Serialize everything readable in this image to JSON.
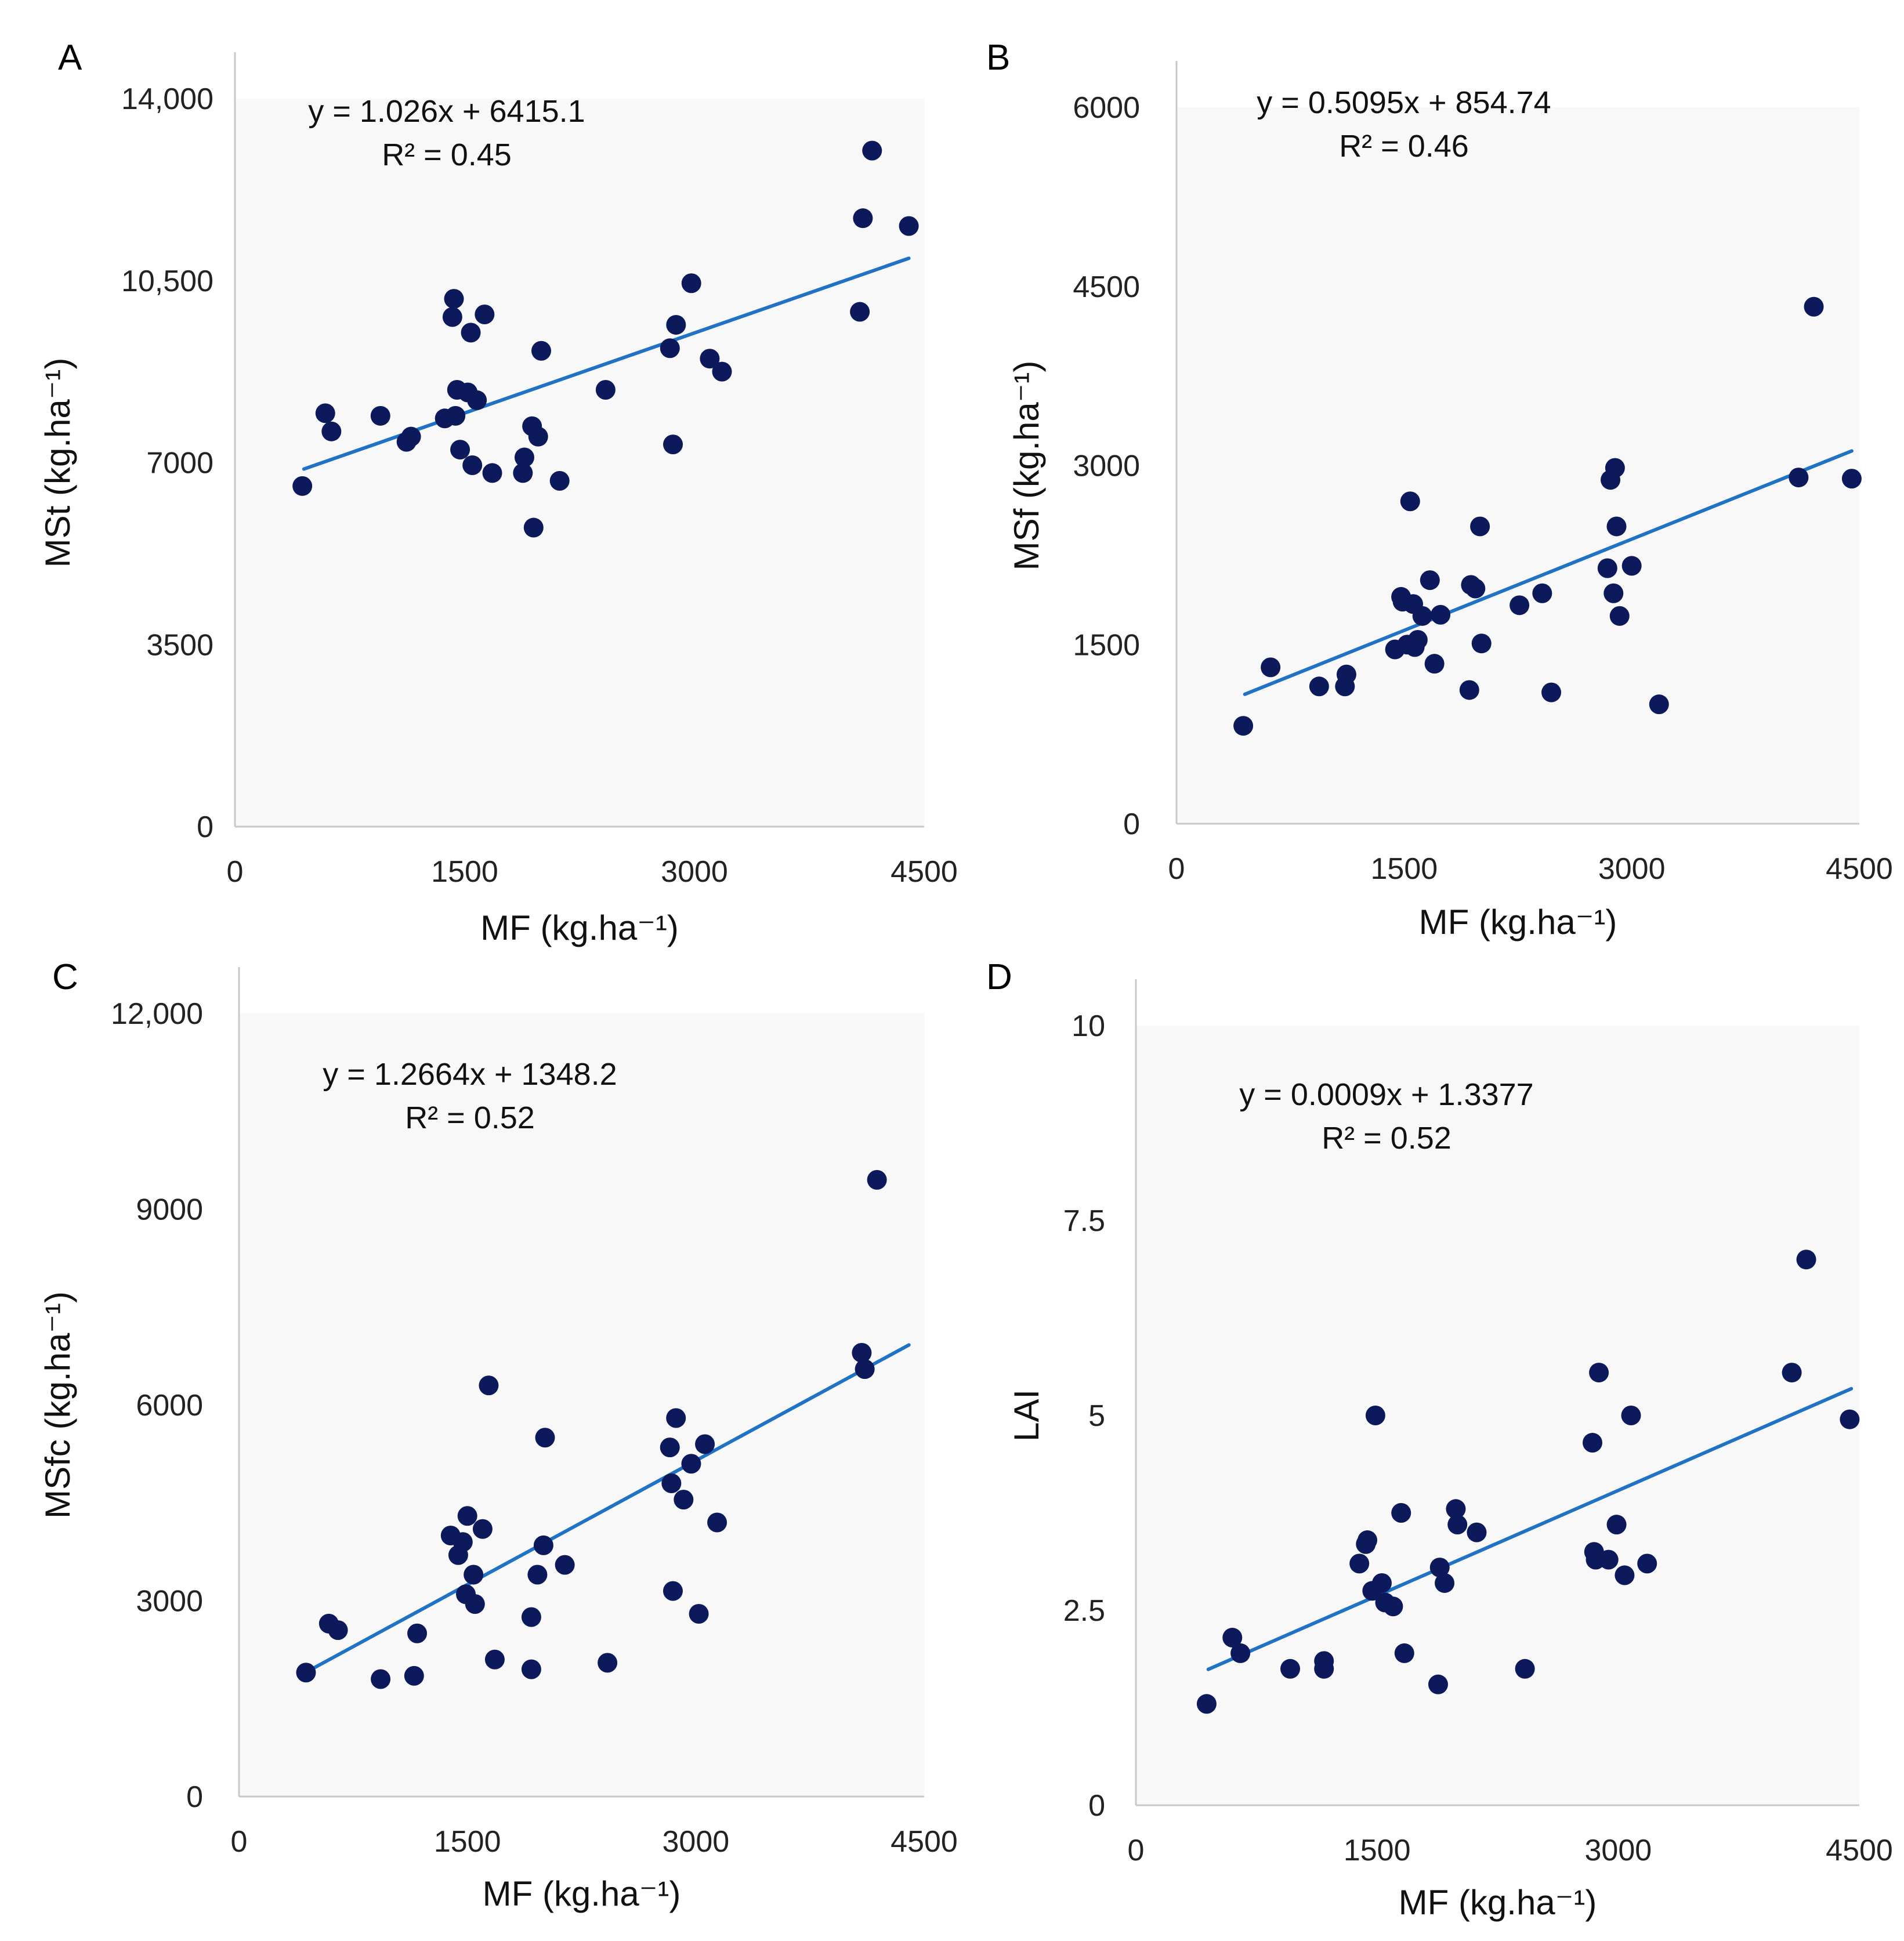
{
  "chart_data": [
    {
      "panel": "A",
      "type": "scatter",
      "xlabel": "MF (kg.ha⁻¹)",
      "ylabel": "MSt (kg.ha⁻¹)",
      "xlim": [
        0,
        4500
      ],
      "ylim": [
        0,
        14000
      ],
      "xticks": [
        0,
        1500,
        3000,
        4500
      ],
      "xtick_labels": [
        "0",
        "1500",
        "3000",
        "4500"
      ],
      "yticks": [
        0,
        3500,
        7000,
        10500,
        14000
      ],
      "ytick_labels": [
        "0",
        "3500",
        "7000",
        "10,500",
        "14,000"
      ],
      "equation": "y = 1.026x + 6415.1",
      "r2": "R² = 0.45",
      "trend": {
        "slope": 1.026,
        "intercept": 6415.1,
        "x_range": [
          450,
          4400
        ]
      },
      "points": [
        [
          440,
          6550
        ],
        [
          590,
          7950
        ],
        [
          630,
          7600
        ],
        [
          950,
          7900
        ],
        [
          1120,
          7400
        ],
        [
          1150,
          7500
        ],
        [
          1370,
          7850
        ],
        [
          1420,
          9800
        ],
        [
          1430,
          10150
        ],
        [
          1440,
          7900
        ],
        [
          1450,
          8400
        ],
        [
          1470,
          7250
        ],
        [
          1520,
          8350
        ],
        [
          1540,
          9500
        ],
        [
          1550,
          6950
        ],
        [
          1580,
          8200
        ],
        [
          1630,
          9850
        ],
        [
          1680,
          6800
        ],
        [
          1880,
          6800
        ],
        [
          1890,
          7100
        ],
        [
          1940,
          7700
        ],
        [
          1950,
          5750
        ],
        [
          1980,
          7500
        ],
        [
          2000,
          9150
        ],
        [
          2120,
          6650
        ],
        [
          2420,
          8400
        ],
        [
          2840,
          9200
        ],
        [
          2860,
          7350
        ],
        [
          2880,
          9650
        ],
        [
          2980,
          10450
        ],
        [
          3100,
          9000
        ],
        [
          3180,
          8750
        ],
        [
          4080,
          9900
        ],
        [
          4100,
          11700
        ],
        [
          4160,
          13000
        ],
        [
          4400,
          11550
        ]
      ]
    },
    {
      "panel": "B",
      "type": "scatter",
      "xlabel": "MF (kg.ha⁻¹)",
      "ylabel": "MSf (kg.ha⁻¹)",
      "xlim": [
        0,
        4500
      ],
      "ylim": [
        0,
        6000
      ],
      "xticks": [
        0,
        1500,
        3000,
        4500
      ],
      "xtick_labels": [
        "0",
        "1500",
        "3000",
        "4500"
      ],
      "yticks": [
        0,
        1500,
        3000,
        4500,
        6000
      ],
      "ytick_labels": [
        "0",
        "1500",
        "3000",
        "4500",
        "6000"
      ],
      "equation": "y = 0.5095x + 854.74",
      "r2": "R² = 0.46",
      "trend": {
        "slope": 0.5095,
        "intercept": 854.74,
        "x_range": [
          450,
          4450
        ]
      },
      "points": [
        [
          440,
          820
        ],
        [
          620,
          1310
        ],
        [
          940,
          1150
        ],
        [
          1120,
          1250
        ],
        [
          1110,
          1150
        ],
        [
          1440,
          1460
        ],
        [
          1480,
          1900
        ],
        [
          1490,
          1860
        ],
        [
          1520,
          1500
        ],
        [
          1540,
          2700
        ],
        [
          1560,
          1840
        ],
        [
          1570,
          1480
        ],
        [
          1590,
          1540
        ],
        [
          1620,
          1740
        ],
        [
          1670,
          2040
        ],
        [
          1700,
          1340
        ],
        [
          1740,
          1750
        ],
        [
          1930,
          1120
        ],
        [
          1940,
          2000
        ],
        [
          1970,
          1970
        ],
        [
          2000,
          2490
        ],
        [
          2010,
          1510
        ],
        [
          2260,
          1830
        ],
        [
          2410,
          1930
        ],
        [
          2470,
          1100
        ],
        [
          2840,
          2140
        ],
        [
          2860,
          2880
        ],
        [
          2880,
          1930
        ],
        [
          2890,
          2980
        ],
        [
          2900,
          2490
        ],
        [
          2920,
          1740
        ],
        [
          3000,
          2160
        ],
        [
          3180,
          1000
        ],
        [
          4100,
          2900
        ],
        [
          4200,
          4330
        ],
        [
          4450,
          2890
        ]
      ]
    },
    {
      "panel": "C",
      "type": "scatter",
      "xlabel": "MF (kg.ha⁻¹)",
      "ylabel": "MSfc (kg.ha⁻¹)",
      "xlim": [
        0,
        4500
      ],
      "ylim": [
        0,
        12000
      ],
      "xticks": [
        0,
        1500,
        3000,
        4500
      ],
      "xtick_labels": [
        "0",
        "1500",
        "3000",
        "4500"
      ],
      "yticks": [
        0,
        3000,
        6000,
        9000,
        12000
      ],
      "ytick_labels": [
        "0",
        "3000",
        "6000",
        "9000",
        "12,000"
      ],
      "equation": "y = 1.2664x + 1348.2",
      "r2": "R² = 0.52",
      "trend": {
        "slope": 1.2664,
        "intercept": 1348.2,
        "x_range": [
          450,
          4400
        ]
      },
      "points": [
        [
          440,
          1900
        ],
        [
          590,
          2650
        ],
        [
          650,
          2550
        ],
        [
          930,
          1800
        ],
        [
          1150,
          1850
        ],
        [
          1170,
          2500
        ],
        [
          1390,
          4000
        ],
        [
          1440,
          3700
        ],
        [
          1470,
          3900
        ],
        [
          1490,
          3100
        ],
        [
          1500,
          4300
        ],
        [
          1540,
          3400
        ],
        [
          1550,
          2950
        ],
        [
          1600,
          4100
        ],
        [
          1640,
          6300
        ],
        [
          1680,
          2100
        ],
        [
          1920,
          1950
        ],
        [
          1920,
          2750
        ],
        [
          1960,
          3400
        ],
        [
          2000,
          3850
        ],
        [
          2010,
          5500
        ],
        [
          2140,
          3550
        ],
        [
          2420,
          2050
        ],
        [
          2830,
          5350
        ],
        [
          2840,
          4800
        ],
        [
          2850,
          3150
        ],
        [
          2870,
          5800
        ],
        [
          2920,
          4550
        ],
        [
          2970,
          5100
        ],
        [
          3020,
          2800
        ],
        [
          3060,
          5400
        ],
        [
          3140,
          4200
        ],
        [
          4090,
          6800
        ],
        [
          4110,
          6550
        ],
        [
          4190,
          9450
        ]
      ]
    },
    {
      "panel": "D",
      "type": "scatter",
      "xlabel": "MF (kg.ha⁻¹)",
      "ylabel": "LAI",
      "xlim": [
        0,
        4500
      ],
      "ylim": [
        0,
        10
      ],
      "xticks": [
        0,
        1500,
        3000,
        4500
      ],
      "xtick_labels": [
        "0",
        "1500",
        "3000",
        "4500"
      ],
      "yticks": [
        0,
        2.5,
        5,
        7.5,
        10
      ],
      "ytick_labels": [
        "0",
        "2.5",
        "5",
        "7.5",
        "10"
      ],
      "equation": "y = 0.0009x + 1.3377",
      "r2": "R² = 0.52",
      "trend": {
        "slope": 0.0009,
        "intercept": 1.3377,
        "x_range": [
          450,
          4450
        ]
      },
      "points": [
        [
          440,
          1.3
        ],
        [
          600,
          2.15
        ],
        [
          650,
          1.95
        ],
        [
          960,
          1.75
        ],
        [
          1170,
          1.75
        ],
        [
          1170,
          1.85
        ],
        [
          1390,
          3.1
        ],
        [
          1430,
          3.35
        ],
        [
          1440,
          3.4
        ],
        [
          1470,
          2.75
        ],
        [
          1490,
          5.0
        ],
        [
          1530,
          2.85
        ],
        [
          1550,
          2.6
        ],
        [
          1600,
          2.55
        ],
        [
          1650,
          3.75
        ],
        [
          1670,
          1.95
        ],
        [
          1880,
          1.55
        ],
        [
          1890,
          3.05
        ],
        [
          1920,
          2.85
        ],
        [
          1990,
          3.8
        ],
        [
          2000,
          3.6
        ],
        [
          2120,
          3.5
        ],
        [
          2420,
          1.75
        ],
        [
          2840,
          4.65
        ],
        [
          2850,
          3.25
        ],
        [
          2860,
          3.15
        ],
        [
          2880,
          5.55
        ],
        [
          2940,
          3.15
        ],
        [
          2990,
          3.6
        ],
        [
          3040,
          2.95
        ],
        [
          3080,
          5.0
        ],
        [
          3180,
          3.1
        ],
        [
          4080,
          5.55
        ],
        [
          4170,
          7.0
        ],
        [
          4440,
          4.95
        ]
      ]
    }
  ]
}
